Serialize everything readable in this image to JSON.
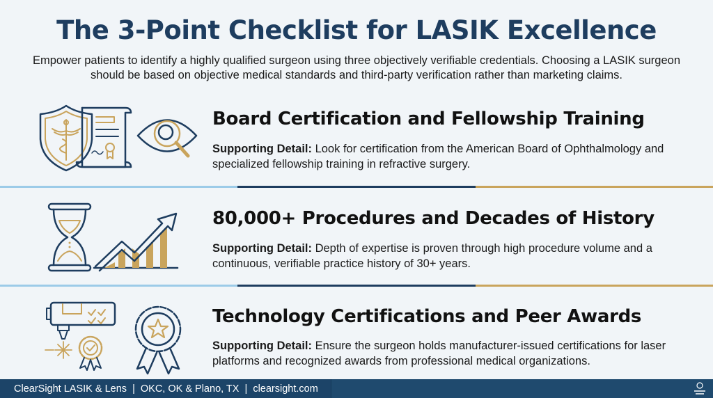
{
  "title": "The 3-Point Checklist for LASIK Excellence",
  "subtitle": "Empower patients to identify a highly qualified surgeon using three objectively verifiable credentials. Choosing a LASIK surgeon should be based on objective medical standards and third-party verification rather than marketing claims.",
  "colors": {
    "navy": "#1e3d5f",
    "gold": "#c9a45c",
    "light_blue": "#9ccbe8",
    "background": "#f1f5f8",
    "footer": "#1f4a6e"
  },
  "sections": [
    {
      "heading": "Board Certification and Fellowship Training",
      "detail_label": "Supporting Detail:",
      "detail_text": " Look for certification from the American Board of Ophthalmology and specialized fellowship training in refractive surgery.",
      "icons": [
        "shield-caduceus-icon",
        "certificate-scroll-icon",
        "eye-magnifier-icon"
      ]
    },
    {
      "heading": "80,000+ Procedures and Decades of History",
      "detail_label": "Supporting Detail:",
      "detail_text": " Depth of expertise is proven through high procedure volume and a continuous, verifiable practice history of 30+ years.",
      "icons": [
        "hourglass-icon",
        "growth-chart-icon"
      ]
    },
    {
      "heading": "Technology Certifications and Peer Awards",
      "detail_label": "Supporting Detail:",
      "detail_text": " Ensure the surgeon holds manufacturer-issued certifications for laser platforms and recognized awards from professional medical organizations.",
      "icons": [
        "laser-device-icon",
        "certified-badge-icon",
        "award-ribbon-icon"
      ]
    }
  ],
  "footer": {
    "text": "ClearSight LASIK & Lens  |  OKC, OK & Plano, TX  |  clearsight.com",
    "logo_text": "ClearSight LASIK"
  }
}
